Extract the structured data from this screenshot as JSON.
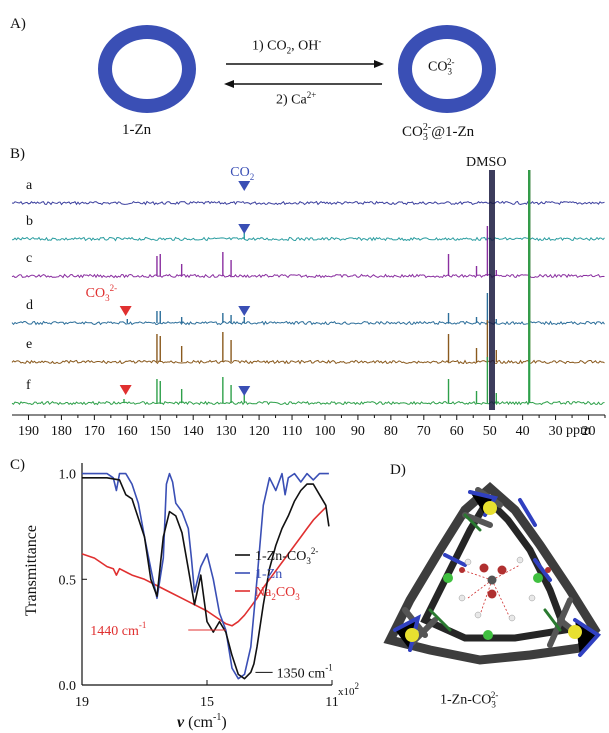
{
  "panelA": {
    "letter": "A)",
    "left_label": "1-Zn",
    "right_label_main": "CO",
    "right_label_sub": "3",
    "right_label_sup": "2-",
    "right_label_tail": "@1-Zn",
    "ring_content_main": "CO",
    "ring_content_sub": "3",
    "ring_content_sup": "2-",
    "step1_prefix": "1) CO",
    "step1_sub": "2",
    "step1_mid": ", OH",
    "step1_sup": "-",
    "step2_prefix": "2) Ca",
    "step2_sup": "2+",
    "ring_color": "#3a4fb5"
  },
  "panelB": {
    "letter": "B)",
    "trace_labels": [
      "a",
      "b",
      "c",
      "d",
      "e",
      "f"
    ],
    "trace_colors": [
      "#3b3f9e",
      "#2a9da0",
      "#8a2fa0",
      "#2c6e9a",
      "#8a5a1e",
      "#2ea04a"
    ],
    "co2_label": "CO",
    "co2_sub": "2",
    "co3_label": "CO",
    "co3_sub": "3",
    "co3_sup": "2-",
    "dmso_label": "DMSO",
    "marker_blue": "#3a4fb5",
    "marker_red": "#e03030",
    "axis_ticks": [
      "190",
      "180",
      "170",
      "160",
      "150",
      "140",
      "130",
      "120",
      "110",
      "100",
      "90",
      "80",
      "70",
      "60",
      "50",
      "40",
      "30",
      "20"
    ],
    "axis_unit": "ppm"
  },
  "chart_data": {
    "type": "line",
    "panel_letter": "C)",
    "xlabel_main": "v",
    "xlabel_unit": " (cm",
    "xlabel_sup": "-1",
    "xlabel_close": ")",
    "x_multiplier": "x10",
    "x_multiplier_sup": "2",
    "ylabel": "Transmittance",
    "xlim": [
      1900,
      1100
    ],
    "ylim": [
      0,
      1.05
    ],
    "x_ticks": [
      "19",
      "15",
      "11"
    ],
    "y_ticks": [
      "1.0",
      "0.5",
      "0.0"
    ],
    "annotations": [
      {
        "text_main": "1440 cm",
        "text_sup": "-1",
        "color": "#e03030"
      },
      {
        "text_main": "1350 cm",
        "text_sup": "-1",
        "color": "#111111"
      }
    ],
    "series": [
      {
        "name_main": "1-Zn-CO",
        "name_sub": "3",
        "name_sup": "2-",
        "color": "#111111",
        "x": [
          1900,
          1820,
          1780,
          1760,
          1740,
          1700,
          1680,
          1660,
          1640,
          1620,
          1600,
          1580,
          1560,
          1540,
          1520,
          1500,
          1480,
          1460,
          1440,
          1420,
          1400,
          1380,
          1360,
          1350,
          1340,
          1320,
          1300,
          1280,
          1260,
          1240,
          1220,
          1200,
          1180,
          1160,
          1140,
          1120,
          1110
        ],
        "y": [
          0.98,
          0.98,
          0.97,
          0.9,
          0.88,
          0.7,
          0.5,
          0.42,
          0.7,
          0.82,
          0.8,
          0.72,
          0.55,
          0.38,
          0.52,
          0.3,
          0.25,
          0.3,
          0.25,
          0.14,
          0.05,
          0.03,
          0.06,
          0.1,
          0.18,
          0.38,
          0.55,
          0.66,
          0.74,
          0.8,
          0.87,
          0.92,
          0.95,
          0.95,
          0.9,
          0.85,
          0.75
        ]
      },
      {
        "name_main": "1-Zn",
        "name_sub": "",
        "name_sup": "",
        "color": "#3a4fb5",
        "x": [
          1900,
          1820,
          1800,
          1790,
          1780,
          1760,
          1740,
          1720,
          1700,
          1680,
          1660,
          1640,
          1630,
          1620,
          1610,
          1600,
          1580,
          1560,
          1550,
          1540,
          1520,
          1500,
          1480,
          1460,
          1440,
          1420,
          1400,
          1380,
          1360,
          1340,
          1320,
          1300,
          1280,
          1260,
          1250,
          1240,
          1220,
          1200,
          1180,
          1160,
          1140,
          1120,
          1110
        ],
        "y": [
          1.0,
          1.0,
          0.98,
          0.92,
          1.0,
          1.0,
          0.95,
          0.86,
          0.7,
          0.55,
          0.41,
          0.6,
          0.95,
          1.0,
          0.96,
          0.86,
          0.82,
          0.74,
          0.6,
          0.44,
          0.56,
          0.62,
          0.5,
          0.34,
          0.26,
          0.08,
          0.03,
          0.05,
          0.18,
          0.5,
          0.85,
          0.98,
          0.92,
          1.0,
          0.9,
          0.98,
          1.0,
          0.96,
          1.0,
          0.97,
          1.0,
          1.0,
          1.0
        ]
      },
      {
        "name_main": "Na",
        "name_sub": "2",
        "name_sup": "",
        "name_tail": "CO",
        "name_sub2": "3",
        "color": "#e03030",
        "x": [
          1900,
          1860,
          1820,
          1800,
          1790,
          1780,
          1740,
          1700,
          1660,
          1620,
          1580,
          1540,
          1500,
          1460,
          1440,
          1420,
          1400,
          1380,
          1360,
          1340,
          1320,
          1300,
          1280,
          1260,
          1240,
          1220,
          1200,
          1180,
          1160,
          1140,
          1120
        ],
        "y": [
          0.62,
          0.6,
          0.56,
          0.55,
          0.52,
          0.55,
          0.52,
          0.5,
          0.47,
          0.44,
          0.41,
          0.38,
          0.35,
          0.31,
          0.29,
          0.28,
          0.3,
          0.33,
          0.37,
          0.41,
          0.46,
          0.5,
          0.54,
          0.58,
          0.62,
          0.66,
          0.7,
          0.74,
          0.78,
          0.81,
          0.84
        ]
      }
    ]
  },
  "panelD": {
    "letter": "D)",
    "caption_main": "1-Zn-CO",
    "caption_sub": "3",
    "caption_sup": "2-"
  }
}
